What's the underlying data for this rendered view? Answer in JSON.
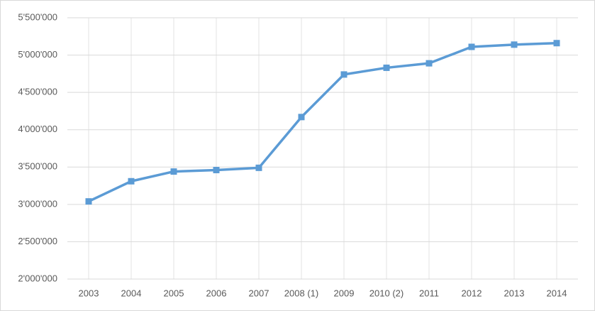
{
  "chart_data": {
    "type": "line",
    "categories": [
      "2003",
      "2004",
      "2005",
      "2006",
      "2007",
      "2008 (1)",
      "2009",
      "2010 (2)",
      "2011",
      "2012",
      "2013",
      "2014"
    ],
    "series": [
      {
        "color": "#5b9bd5",
        "values": [
          3040000,
          3310000,
          3440000,
          3460000,
          3490000,
          4170000,
          4740000,
          4830000,
          4890000,
          5110000,
          5140000,
          5160000
        ]
      }
    ],
    "ylim": [
      2000000,
      5500000
    ],
    "yticks": [
      {
        "value": 2000000,
        "label": "2'000'000"
      },
      {
        "value": 2500000,
        "label": "2'500'000"
      },
      {
        "value": 3000000,
        "label": "3'000'000"
      },
      {
        "value": 3500000,
        "label": "3'500'000"
      },
      {
        "value": 4000000,
        "label": "4'000'000"
      },
      {
        "value": 4500000,
        "label": "4'500'000"
      },
      {
        "value": 5000000,
        "label": "5'000'000"
      },
      {
        "value": 5500000,
        "label": "5'500'000"
      }
    ],
    "grid": true
  }
}
